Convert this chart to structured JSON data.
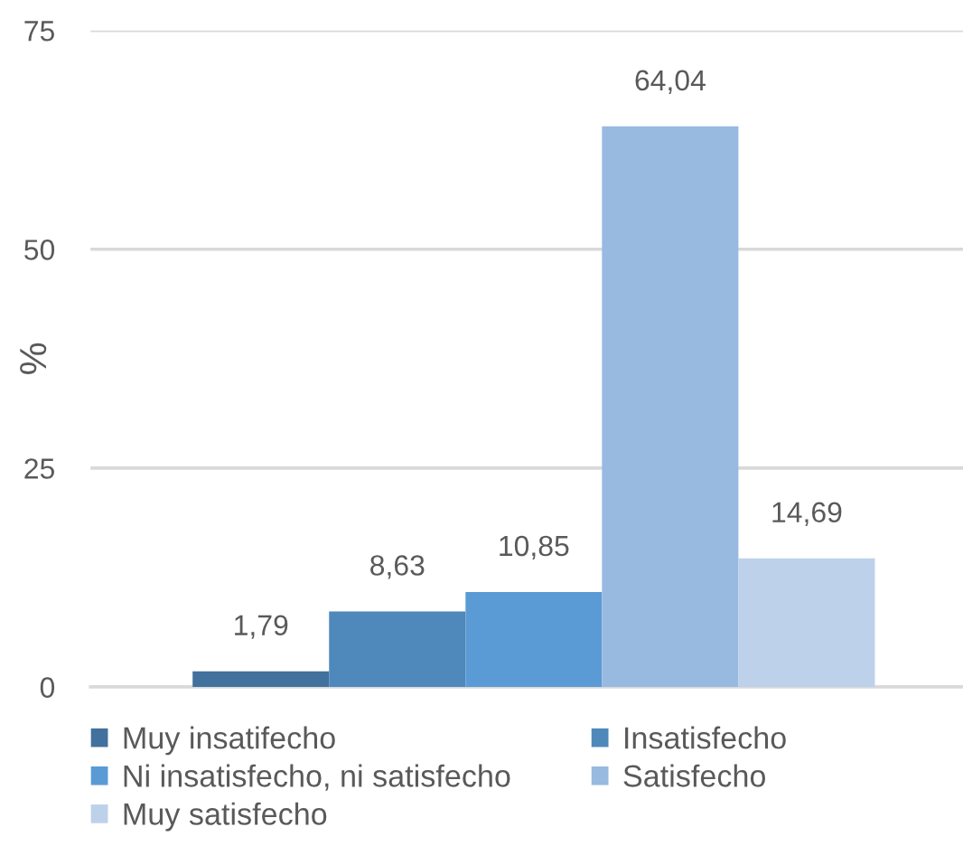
{
  "chart_data": {
    "type": "bar",
    "ylabel": "%",
    "categories": [
      null
    ],
    "series": [
      {
        "name": "Muy insatifecho",
        "color": "#41719c",
        "values": [
          1.79
        ],
        "value_labels": [
          "1,79"
        ]
      },
      {
        "name": "Insatisfecho",
        "color": "#4f88bb",
        "values": [
          8.63
        ],
        "value_labels": [
          "8,63"
        ]
      },
      {
        "name": "Ni insatisfecho, ni satisfecho",
        "color": "#5b9bd5",
        "values": [
          10.85
        ],
        "value_labels": [
          "10,85"
        ]
      },
      {
        "name": "Satisfecho",
        "color": "#98b9e0",
        "values": [
          64.04
        ],
        "value_labels": [
          "64,04"
        ]
      },
      {
        "name": "Muy satisfecho",
        "color": "#bdd1ea",
        "values": [
          14.69
        ],
        "value_labels": [
          "14,69"
        ]
      }
    ],
    "ylim": [
      0,
      75
    ],
    "yticks": [
      0,
      25,
      50,
      75
    ],
    "grid": "y",
    "legend": "bottom"
  }
}
